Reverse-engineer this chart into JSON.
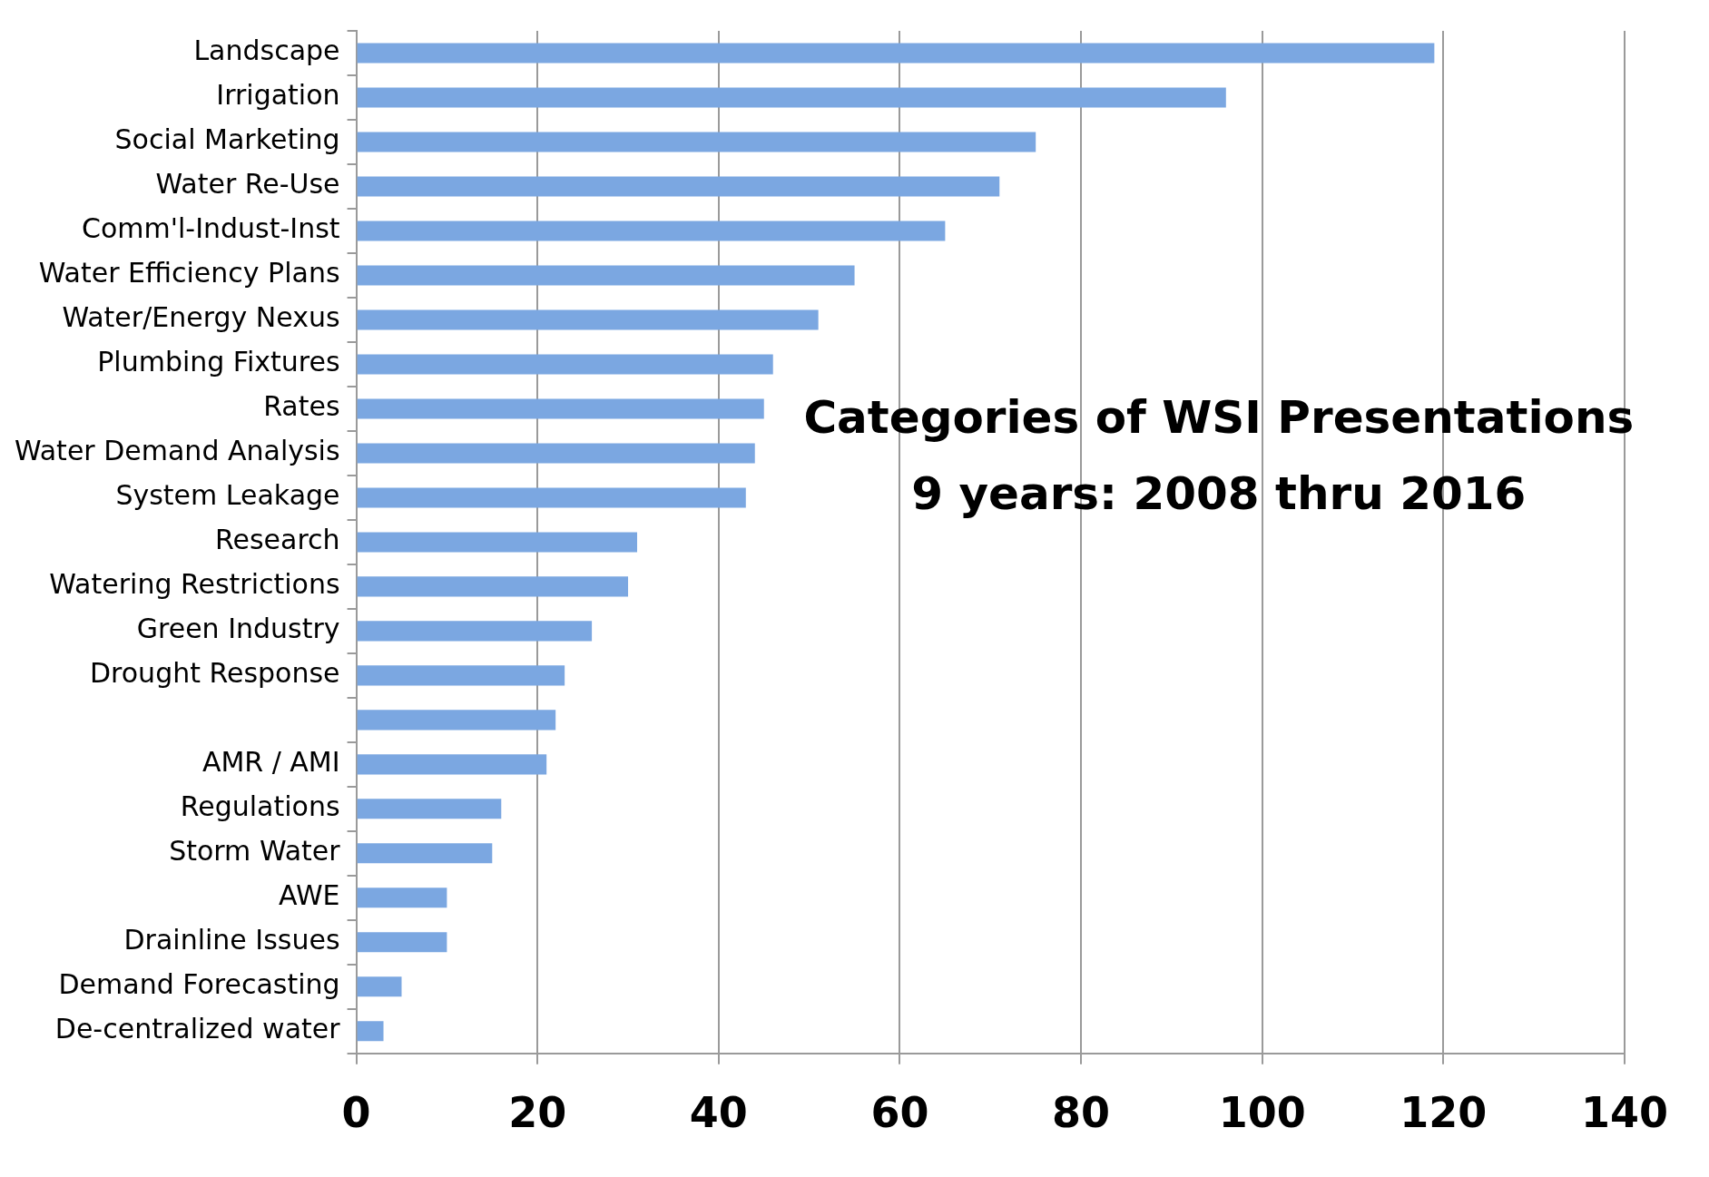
{
  "chart_data": {
    "type": "bar",
    "orientation": "horizontal",
    "title": "Categories of WSI Presentations",
    "subtitle": "9 years: 2008 thru 2016",
    "categories": [
      "Landscape",
      "Irrigation",
      "Social Marketing",
      "Water Re-Use",
      "Comm'l-Indust-Inst",
      "Water Efficiency Plans",
      "Water/Energy Nexus",
      "Plumbing Fixtures",
      "Rates",
      "Water Demand Analysis",
      "System Leakage",
      "Research",
      "Watering Restrictions",
      "Green Industry",
      "Drought Response",
      null,
      "AMR / AMI",
      "Regulations",
      "Storm Water",
      "AWE",
      "Drainline Issues",
      "Demand Forecasting",
      "De-centralized water"
    ],
    "values": [
      119,
      96,
      75,
      71,
      65,
      55,
      51,
      46,
      45,
      44,
      43,
      31,
      30,
      26,
      23,
      22,
      21,
      16,
      15,
      10,
      10,
      5,
      3
    ],
    "color": "#7ba7e1",
    "xlim": [
      0,
      140
    ],
    "xticks": [
      0,
      20,
      40,
      60,
      80,
      100,
      120,
      140
    ],
    "grid": "x",
    "legend": false
  }
}
